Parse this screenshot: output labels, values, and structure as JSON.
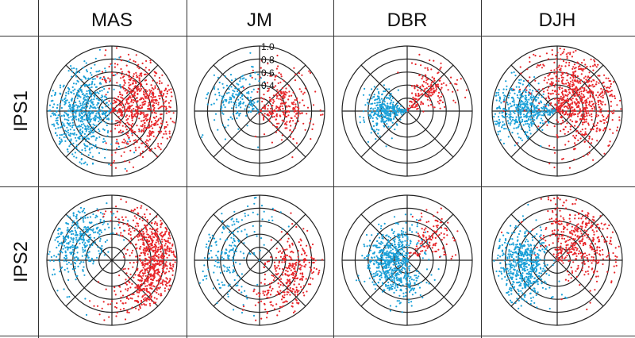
{
  "chart_data": {
    "type": "scatter",
    "subtype": "polar-grid",
    "columns": [
      "MAS",
      "JM",
      "DBR",
      "DJH"
    ],
    "rows": [
      "IPS1",
      "IPS2"
    ],
    "radial_ticks": [
      "1.0",
      "0.8",
      "0.6",
      "0.4"
    ],
    "radial_tick_values": [
      1.0,
      0.8,
      0.6,
      0.4
    ],
    "rlim": [
      0,
      1.0
    ],
    "ring_values": [
      0.2,
      0.4,
      0.6,
      0.8,
      1.0
    ],
    "spoke_angles_deg": [
      0,
      45,
      90,
      135,
      180,
      225,
      270,
      315
    ],
    "radial_tick_panel": "IPS1-JM",
    "series_colors": {
      "red": "#e8262a",
      "blue": "#1aa0d8"
    },
    "panels": [
      {
        "row": "IPS1",
        "column": "MAS",
        "red": {
          "n": 650,
          "angle_deg": 10,
          "angle_spread_deg": 42,
          "radius": 0.55,
          "radius_spread": 0.45
        },
        "blue": {
          "n": 650,
          "angle_deg": 185,
          "angle_spread_deg": 40,
          "radius": 0.55,
          "radius_spread": 0.45
        }
      },
      {
        "row": "IPS1",
        "column": "JM",
        "red": {
          "n": 260,
          "angle_deg": 15,
          "angle_spread_deg": 38,
          "radius": 0.45,
          "radius_spread": 0.4
        },
        "blue": {
          "n": 180,
          "angle_deg": 150,
          "angle_spread_deg": 30,
          "radius": 0.45,
          "radius_spread": 0.4
        }
      },
      {
        "row": "IPS1",
        "column": "DBR",
        "red": {
          "n": 180,
          "angle_deg": 45,
          "angle_spread_deg": 18,
          "radius": 0.5,
          "radius_spread": 0.4
        },
        "blue": {
          "n": 320,
          "angle_deg": 178,
          "angle_spread_deg": 22,
          "radius": 0.35,
          "radius_spread": 0.3
        }
      },
      {
        "row": "IPS1",
        "column": "DJH",
        "red": {
          "n": 750,
          "angle_deg": 30,
          "angle_spread_deg": 50,
          "radius": 0.5,
          "radius_spread": 0.5
        },
        "blue": {
          "n": 450,
          "angle_deg": 178,
          "angle_spread_deg": 22,
          "radius": 0.55,
          "radius_spread": 0.45
        }
      },
      {
        "row": "IPS2",
        "column": "MAS",
        "red": {
          "n": 750,
          "angle_deg": 0,
          "angle_spread_deg": 38,
          "radius": 0.7,
          "radius_spread": 0.3
        },
        "blue": {
          "n": 350,
          "angle_deg": 150,
          "angle_spread_deg": 28,
          "radius": 0.65,
          "radius_spread": 0.35
        }
      },
      {
        "row": "IPS2",
        "column": "JM",
        "red": {
          "n": 320,
          "angle_deg": 335,
          "angle_spread_deg": 35,
          "radius": 0.6,
          "radius_spread": 0.35
        },
        "blue": {
          "n": 200,
          "angle_deg": 165,
          "angle_spread_deg": 45,
          "radius": 0.6,
          "radius_spread": 0.35
        }
      },
      {
        "row": "IPS2",
        "column": "DBR",
        "red": {
          "n": 120,
          "angle_deg": 40,
          "angle_spread_deg": 18,
          "radius": 0.5,
          "radius_spread": 0.35
        },
        "blue": {
          "n": 650,
          "angle_deg": 190,
          "angle_spread_deg": 60,
          "radius": 0.35,
          "radius_spread": 0.3
        }
      },
      {
        "row": "IPS2",
        "column": "DJH",
        "red": {
          "n": 420,
          "angle_deg": 40,
          "angle_spread_deg": 40,
          "radius": 0.55,
          "radius_spread": 0.45
        },
        "blue": {
          "n": 550,
          "angle_deg": 190,
          "angle_spread_deg": 28,
          "radius": 0.6,
          "radius_spread": 0.35
        }
      }
    ]
  }
}
